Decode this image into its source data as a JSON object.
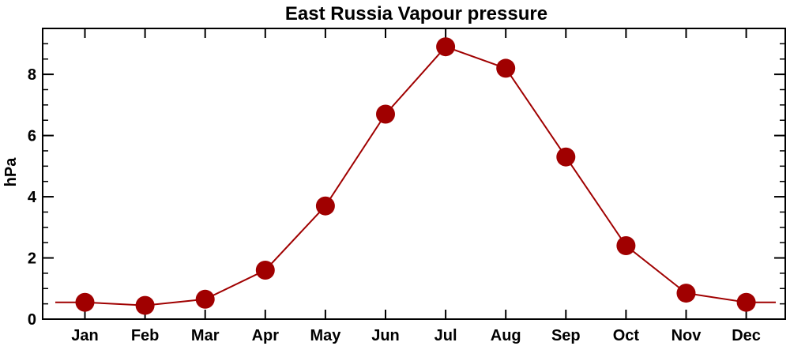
{
  "chart_data": {
    "type": "line",
    "title": "East Russia Vapour pressure",
    "xlabel": "",
    "ylabel": "hPa",
    "categories": [
      "Jan",
      "Feb",
      "Mar",
      "Apr",
      "May",
      "Jun",
      "Jul",
      "Aug",
      "Sep",
      "Oct",
      "Nov",
      "Dec"
    ],
    "series": [
      {
        "values": [
          0.55,
          0.45,
          0.65,
          1.6,
          3.7,
          6.7,
          8.9,
          8.2,
          5.3,
          2.4,
          0.85,
          0.55
        ],
        "color": "#a00000"
      }
    ],
    "ylim": [
      0,
      9.5
    ],
    "yticks": [
      0,
      2,
      4,
      6,
      8
    ],
    "grid": false,
    "legend": "none"
  }
}
